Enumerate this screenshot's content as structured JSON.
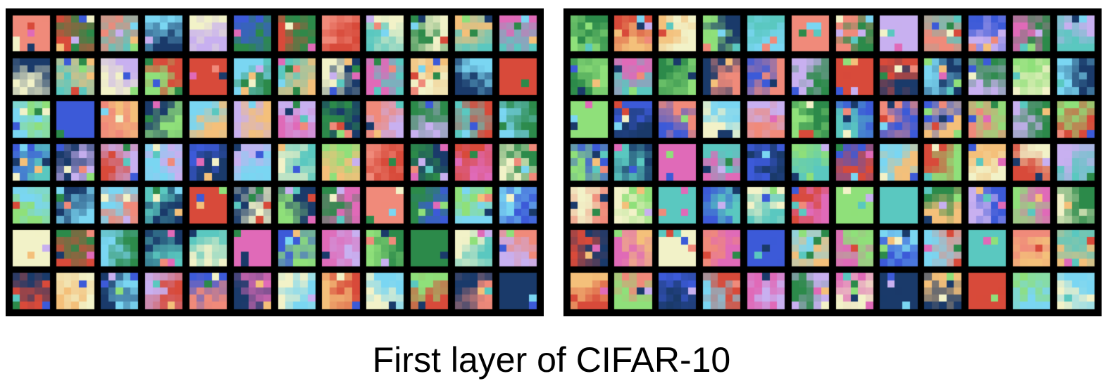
{
  "caption": "First layer of CIFAR-10",
  "panels": [
    {
      "rows": 7,
      "cols": 12
    },
    {
      "rows": 7,
      "cols": 12
    }
  ],
  "colors": {
    "background": "#ffffff",
    "grid_lines": "#000000",
    "caption_text": "#000000",
    "filter_palette": [
      "#f08a7a",
      "#7ad6f2",
      "#8fe07a",
      "#3c5ad8",
      "#f4c07a",
      "#e06ab8",
      "#2c8a4a",
      "#c8b0f0",
      "#f2f2c8",
      "#1a3a6a",
      "#d84a3a",
      "#5ac8c0"
    ]
  }
}
